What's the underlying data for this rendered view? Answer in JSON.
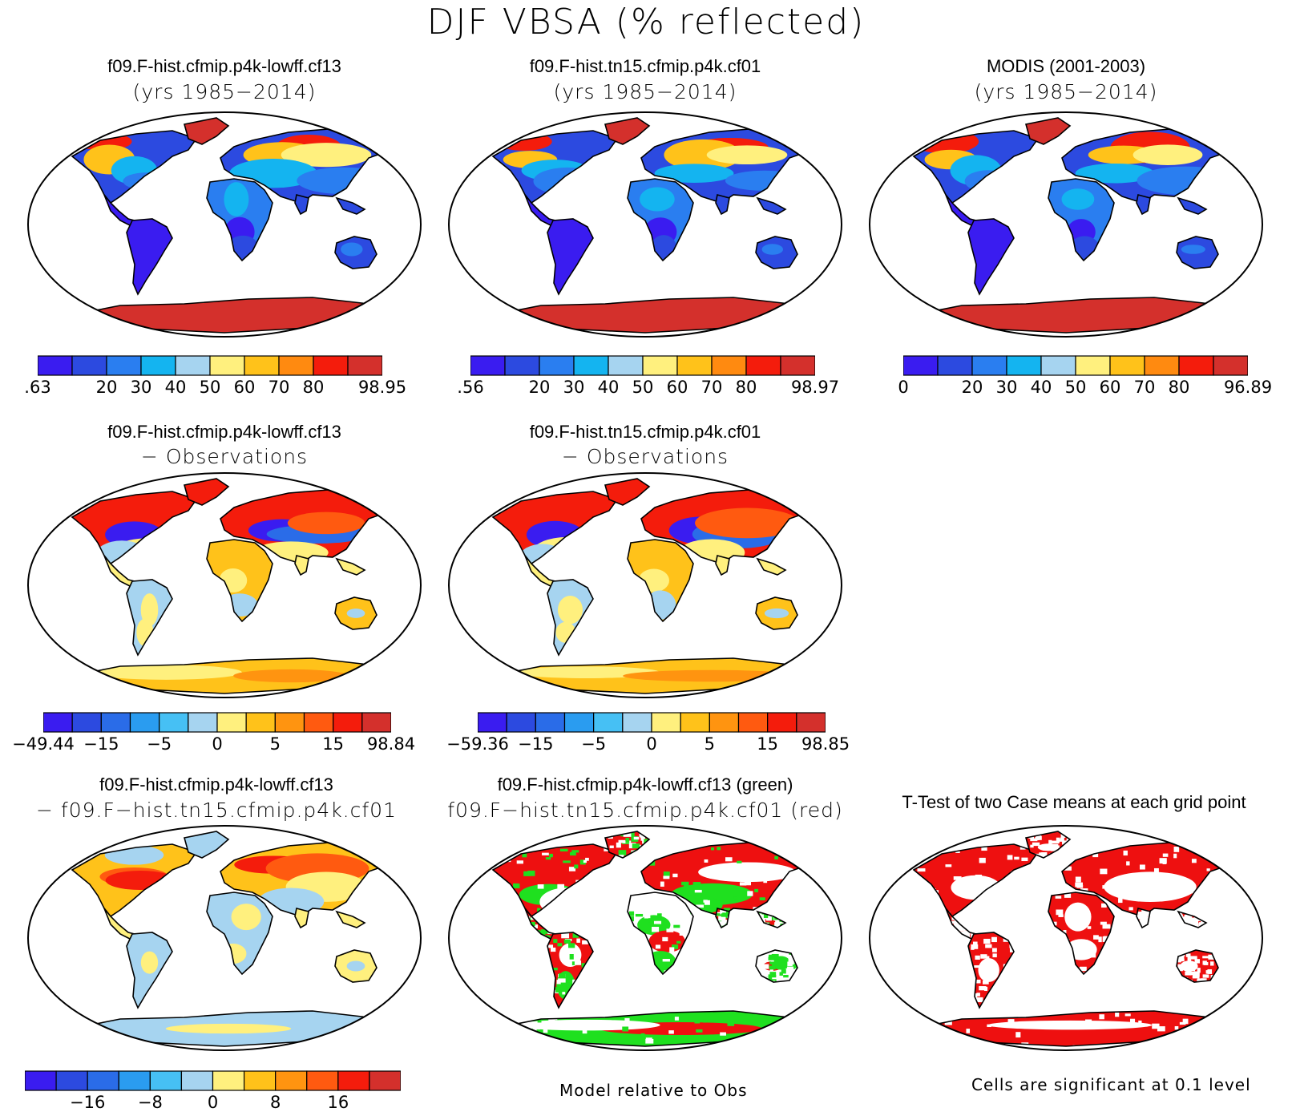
{
  "title": "DJF VBSA (% reflected)",
  "panels": [
    {
      "id": "p1",
      "line1": "f09.F-hist.cfmip.p4k-lowff.cf13",
      "line2": "(yrs 1985−2014)",
      "scheme": "abs",
      "variant": "a"
    },
    {
      "id": "p2",
      "line1": "f09.F-hist.tn15.cfmip.p4k.cf01",
      "line2": "(yrs 1985−2014)",
      "scheme": "abs",
      "variant": "b"
    },
    {
      "id": "p3",
      "line1": "MODIS (2001-2003)",
      "line2": "(yrs 1985−2014)",
      "scheme": "abs",
      "variant": "c"
    },
    {
      "id": "p4",
      "line1": "f09.F-hist.cfmip.p4k-lowff.cf13",
      "line2": "− Observations",
      "scheme": "diff",
      "variant": "a"
    },
    {
      "id": "p5",
      "line1": "f09.F-hist.tn15.cfmip.p4k.cf01",
      "line2": "− Observations",
      "scheme": "diff",
      "variant": "b"
    },
    {
      "id": "p6",
      "line1": "f09.F-hist.cfmip.p4k-lowff.cf13",
      "line2": "− f09.F−hist.tn15.cfmip.p4k.cf01",
      "scheme": "casediff",
      "variant": "a"
    },
    {
      "id": "p7",
      "line1": "f09.F-hist.cfmip.p4k-lowff.cf13 (green)",
      "line2": "f09.F−hist.tn15.cfmip.p4k.cf01 (red)",
      "scheme": "compare",
      "variant": "a"
    },
    {
      "id": "p8",
      "line1": "T-Test of two Case means at each grid point",
      "line2": "",
      "scheme": "ttest",
      "variant": "a"
    }
  ],
  "colorbars": [
    {
      "id": "cb1",
      "colors": [
        "#3a1cf0",
        "#2c4ae0",
        "#2a7ef0",
        "#14b4f0",
        "#a6d4f0",
        "#fff07e",
        "#ffc21a",
        "#ff8a10",
        "#f41c0c",
        "#d4302c"
      ],
      "labels": [
        ".63",
        "20",
        "30",
        "40",
        "50",
        "60",
        "70",
        "80",
        "98.95"
      ]
    },
    {
      "id": "cb2",
      "colors": [
        "#3a1cf0",
        "#2c4ae0",
        "#2a7ef0",
        "#14b4f0",
        "#a6d4f0",
        "#fff07e",
        "#ffc21a",
        "#ff8a10",
        "#f41c0c",
        "#d4302c"
      ],
      "labels": [
        ".56",
        "20",
        "30",
        "40",
        "50",
        "60",
        "70",
        "80",
        "98.97"
      ]
    },
    {
      "id": "cb3",
      "colors": [
        "#3a1cf0",
        "#2c4ae0",
        "#2a7ef0",
        "#14b4f0",
        "#a6d4f0",
        "#fff07e",
        "#ffc21a",
        "#ff8a10",
        "#f41c0c",
        "#d4302c"
      ],
      "labels": [
        "0",
        "20",
        "30",
        "40",
        "50",
        "60",
        "70",
        "80",
        "96.89"
      ]
    },
    {
      "id": "cb4",
      "colors": [
        "#3a1cf0",
        "#2c4ae0",
        "#2a6ce8",
        "#2a9cf0",
        "#46c0f4",
        "#a6d4f0",
        "#fff07e",
        "#ffc21a",
        "#ff9410",
        "#ff5a10",
        "#f41c0c",
        "#d4302c"
      ],
      "labels": [
        "−49.44",
        "−15",
        "−5",
        "0",
        "5",
        "15",
        "98.84"
      ]
    },
    {
      "id": "cb5",
      "colors": [
        "#3a1cf0",
        "#2c4ae0",
        "#2a6ce8",
        "#2a9cf0",
        "#46c0f4",
        "#a6d4f0",
        "#fff07e",
        "#ffc21a",
        "#ff9410",
        "#ff5a10",
        "#f41c0c",
        "#d4302c"
      ],
      "labels": [
        "−59.36",
        "−15",
        "−5",
        "0",
        "5",
        "15",
        "98.85"
      ]
    },
    {
      "id": "cb6",
      "colors": [
        "#3a1cf0",
        "#2c4ae0",
        "#2a6ce8",
        "#2a9cf0",
        "#46c0f4",
        "#a6d4f0",
        "#fff07e",
        "#ffc21a",
        "#ff9410",
        "#ff5a10",
        "#f41c0c",
        "#d4302c"
      ],
      "labels": [
        "−16",
        "−8",
        "0",
        "8",
        "16"
      ]
    }
  ],
  "notes": {
    "compare": "Model relative to Obs",
    "ttest": "Cells are significant at 0.1 level"
  }
}
